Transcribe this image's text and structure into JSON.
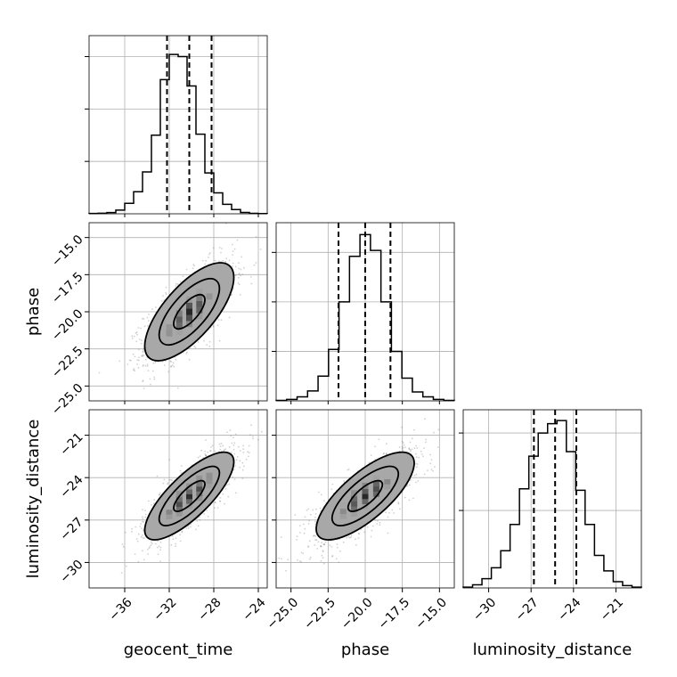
{
  "chart_data": {
    "type": "corner",
    "parameters": [
      "geocent_time",
      "phase",
      "luminosity_distance"
    ],
    "grid": true,
    "histograms": [
      {
        "param": "geocent_time",
        "range": [
          -39.2,
          -23.2
        ],
        "quantiles": [
          -32.2,
          -30.2,
          -28.2
        ],
        "counts": [
          0.3,
          0.5,
          1.2,
          3.5,
          10,
          21,
          40,
          75,
          128,
          152,
          150,
          122,
          76,
          39,
          20,
          9,
          4,
          1.3,
          0.4,
          0.2
        ],
        "yticks": [
          50,
          100,
          150
        ],
        "ymax": 170
      },
      {
        "param": "phase",
        "range": [
          -26,
          -14
        ],
        "quantiles": [
          -21.8,
          -20.0,
          -18.3
        ],
        "counts": [
          0.5,
          1.5,
          4,
          10,
          25,
          52,
          100,
          146,
          168,
          152,
          100,
          50,
          23,
          9,
          4,
          1.5,
          0.5
        ],
        "yticks": [
          50,
          100,
          150
        ],
        "ymax": 180
      },
      {
        "param": "luminosity_distance",
        "range": [
          -31.8,
          -19.2
        ],
        "quantiles": [
          -26.8,
          -25.3,
          -23.8
        ],
        "counts": [
          0.5,
          2,
          6,
          13,
          24,
          41,
          64,
          85,
          100,
          106,
          108,
          88,
          63,
          41,
          21,
          11,
          4,
          1.5,
          0.5
        ],
        "yticks": [
          50,
          100
        ],
        "ymax": 115
      }
    ],
    "pairs": [
      {
        "x": "geocent_time",
        "y": "phase",
        "x_mean": -30.2,
        "y_mean": -20.0,
        "x_sd": 2.0,
        "y_sd": 1.65,
        "corr": 0.7
      },
      {
        "x": "geocent_time",
        "y": "luminosity_distance",
        "x_mean": -30.2,
        "y_mean": -25.3,
        "x_sd": 2.0,
        "y_sd": 1.55,
        "corr": 0.78
      },
      {
        "x": "phase",
        "y": "luminosity_distance",
        "x_mean": -20.0,
        "y_mean": -25.3,
        "x_sd": 1.65,
        "y_sd": 1.55,
        "corr": 0.75
      }
    ],
    "axes": {
      "geocent_time": {
        "range": [
          -39.2,
          -23.2
        ],
        "ticks": [
          -36,
          -32,
          -28,
          -24
        ],
        "tick_labels": [
          "−36",
          "−32",
          "−28",
          "−24"
        ]
      },
      "phase": {
        "range": [
          -26,
          -14
        ],
        "ticks": [
          -25.0,
          -22.5,
          -20.0,
          -17.5,
          -15.0
        ],
        "tick_labels": [
          "−25.0",
          "−22.5",
          "−20.0",
          "−17.5",
          "−15.0"
        ]
      },
      "luminosity_distance": {
        "range": [
          -31.8,
          -19.2
        ],
        "ticks": [
          -30,
          -27,
          -24,
          -21
        ],
        "tick_labels": [
          "−30",
          "−27",
          "−24",
          "−21"
        ]
      }
    },
    "xlabels": [
      "geocent_time",
      "phase",
      "luminosity_distance"
    ],
    "ylabels": [
      "phase",
      "luminosity_distance"
    ]
  }
}
